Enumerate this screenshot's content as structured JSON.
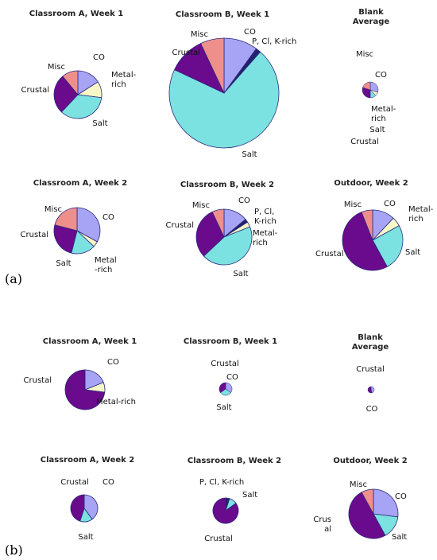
{
  "panel_labels": [
    "(a)",
    "(b)"
  ],
  "colors": {
    "CO": "#a7a4f5",
    "P, Cl, K-rich": "#22226e",
    "Metal-rich": "#f8f7c8",
    "Salt": "#7ce1e1",
    "Crustal": "#6a0a8c",
    "Misc": "#ef8f8c",
    "outline": "#2a2a7a"
  },
  "chart_data": [
    {
      "type": "pie",
      "panel": "(a)",
      "title": "Classroom A, Week 1",
      "categories": [
        "CO",
        "Metal-rich",
        "Salt",
        "Crustal",
        "Misc"
      ],
      "values": [
        16,
        11,
        35,
        27,
        11
      ],
      "labels": [
        "CO",
        "Metal-\nrich",
        "Salt",
        "Crustal",
        "Misc"
      ]
    },
    {
      "type": "pie",
      "panel": "(a)",
      "title": "Classroom B, Week 1",
      "categories": [
        "CO",
        "P, Cl, K-rich",
        "Salt",
        "Crustal",
        "Misc"
      ],
      "values": [
        10,
        1.5,
        70.5,
        11,
        7
      ],
      "labels": [
        "CO",
        "P, Cl, K-rich",
        "Salt",
        "Crustal",
        "Misc"
      ]
    },
    {
      "type": "pie",
      "panel": "(a)",
      "title": "Blank\nAverage",
      "categories": [
        "CO",
        "Metal-rich",
        "Salt",
        "Crustal",
        "Misc"
      ],
      "values": [
        30,
        8,
        12,
        30,
        20
      ],
      "labels": [
        "CO",
        "Metal-\nrich",
        "Salt",
        "Crustal",
        "Misc"
      ]
    },
    {
      "type": "pie",
      "panel": "(a)",
      "title": "Classroom A, Week 2",
      "categories": [
        "CO",
        "Metal-rich",
        "Salt",
        "Crustal",
        "Misc"
      ],
      "values": [
        33,
        4,
        17,
        25,
        21
      ],
      "labels": [
        "CO",
        "Metal\n-rich",
        "Salt",
        "Crustal",
        "Misc"
      ]
    },
    {
      "type": "pie",
      "panel": "(a)",
      "title": "Classroom B, Week 2",
      "categories": [
        "CO",
        "P, Cl, K-rich",
        "Metal-rich",
        "Salt",
        "Crustal",
        "Misc"
      ],
      "values": [
        14,
        2,
        3,
        44,
        30,
        7
      ],
      "labels": [
        "CO",
        "P, Cl,\nK-rich",
        "Metal-\nrich",
        "Salt",
        "Crustal",
        "Misc"
      ]
    },
    {
      "type": "pie",
      "panel": "(a)",
      "title": "Outdoor, Week 2",
      "categories": [
        "CO",
        "Metal-rich",
        "Salt",
        "Crustal",
        "Misc"
      ],
      "values": [
        12,
        5,
        25,
        52,
        6
      ],
      "labels": [
        "CO",
        "Metal-\nrich",
        "Salt",
        "Crustal",
        "Misc"
      ]
    },
    {
      "type": "pie",
      "panel": "(b)",
      "title": "Classroom A, Week 1",
      "categories": [
        "CO",
        "Metal-rich",
        "Crustal"
      ],
      "values": [
        19,
        8,
        73
      ],
      "labels": [
        "CO",
        "Metal-rich",
        "Crustal"
      ]
    },
    {
      "type": "pie",
      "panel": "(b)",
      "title": "Classroom B, Week 1",
      "categories": [
        "CO",
        "Salt",
        "Crustal"
      ],
      "values": [
        35,
        30,
        35
      ],
      "labels": [
        "CO",
        "Salt",
        "Crustal"
      ]
    },
    {
      "type": "pie",
      "panel": "(b)",
      "title": "Blank\nAverage",
      "categories": [
        "CO",
        "Crustal"
      ],
      "values": [
        45,
        55
      ],
      "labels": [
        "CO",
        "Crustal"
      ]
    },
    {
      "type": "pie",
      "panel": "(b)",
      "title": "Classroom A, Week 2",
      "categories": [
        "CO",
        "Salt",
        "Crustal"
      ],
      "values": [
        40,
        15,
        45
      ],
      "labels": [
        "CO",
        "Salt",
        "Crustal"
      ]
    },
    {
      "type": "pie",
      "panel": "(b)",
      "title": "Classroom B, Week 2",
      "categories": [
        "P, Cl, K-rich",
        "Salt",
        "Crustal"
      ],
      "values": [
        5,
        10,
        85
      ],
      "labels": [
        "P, Cl, K-rich",
        "Salt",
        "Crustal"
      ]
    },
    {
      "type": "pie",
      "panel": "(b)",
      "title": "Outdoor, Week 2",
      "categories": [
        "CO",
        "Salt",
        "Crustal",
        "Misc"
      ],
      "values": [
        27,
        15,
        50,
        8
      ],
      "labels": [
        "CO",
        "Salt",
        "Crus\nal",
        "Misc"
      ]
    }
  ]
}
